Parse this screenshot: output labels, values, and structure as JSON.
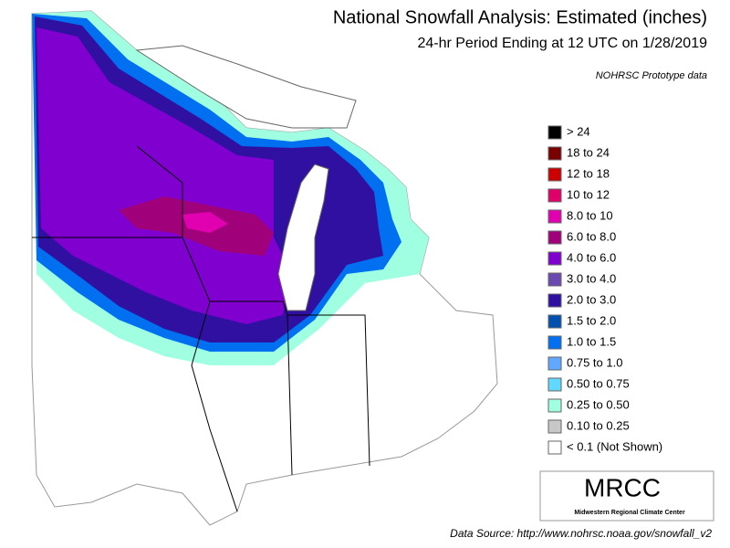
{
  "header": {
    "title": "National Snowfall Analysis: Estimated (inches)",
    "subtitle": "24-hr Period Ending at 12 UTC on 1/28/2019",
    "note": "NOHRSC Prototype data"
  },
  "legend": [
    {
      "label": "> 24",
      "color": "#000000"
    },
    {
      "label": "18 to 24",
      "color": "#7a0000"
    },
    {
      "label": "12 to 18",
      "color": "#cc0000"
    },
    {
      "label": "10 to 12",
      "color": "#e0006a"
    },
    {
      "label": "8.0 to 10",
      "color": "#e000b0"
    },
    {
      "label": "6.0 to 8.0",
      "color": "#a0007a"
    },
    {
      "label": "4.0 to 6.0",
      "color": "#8000d0"
    },
    {
      "label": "3.0 to 4.0",
      "color": "#6a4ab0"
    },
    {
      "label": "2.0 to 3.0",
      "color": "#3010a0"
    },
    {
      "label": "1.5 to 2.0",
      "color": "#0050b0"
    },
    {
      "label": "1.0 to 1.5",
      "color": "#0070f0"
    },
    {
      "label": "0.75 to 1.0",
      "color": "#60a8ff"
    },
    {
      "label": "0.50 to 0.75",
      "color": "#60d8ff"
    },
    {
      "label": "0.25 to 0.50",
      "color": "#a0ffe0"
    },
    {
      "label": "0.10 to 0.25",
      "color": "#c8c8c8"
    },
    {
      "label": "< 0.1 (Not Shown)",
      "color": "#ffffff"
    }
  ],
  "logo": {
    "acronym": "MRCC",
    "name": "Midwestern Regional Climate Center"
  },
  "footer": {
    "source": "Data Source: http://www.nohrsc.noaa.gov/snowfall_v2"
  }
}
